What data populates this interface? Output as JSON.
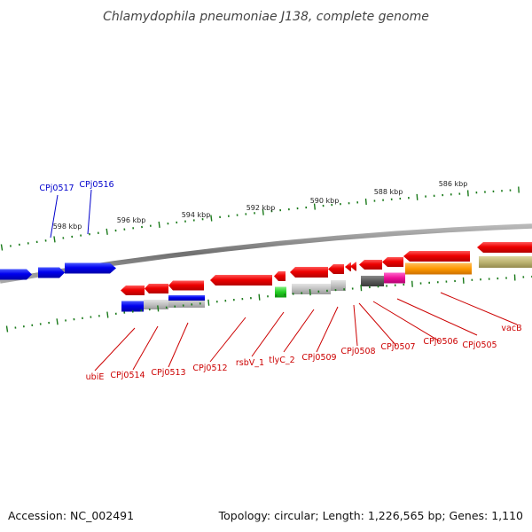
{
  "title": "Chlamydophila pneumoniae J138, complete genome",
  "kbp_labels": [
    "598 kbp",
    "596 kbp",
    "594 kbp",
    "592 kbp",
    "590 kbp",
    "588 kbp",
    "586 kbp"
  ],
  "gene_labels_top": [
    "CPj0517",
    "CPj0516"
  ],
  "gene_labels_bottom": [
    "ubiE",
    "CPj0514",
    "CPj0513",
    "CPj0512",
    "rsbV_1",
    "tlyC_2",
    "CPj0509",
    "CPj0508",
    "CPj0507",
    "CPj0506",
    "CPj0505",
    "vacB"
  ],
  "footer": {
    "accession": "Accession: NC_002491",
    "topology": "Topology: circular; Length: 1,226,565 bp; Genes: 1,110"
  },
  "colors": {
    "label_top": "#0000cc",
    "label_bottom": "#cc0000",
    "ticks": "#1a7a1a",
    "backbone": "#808080"
  }
}
